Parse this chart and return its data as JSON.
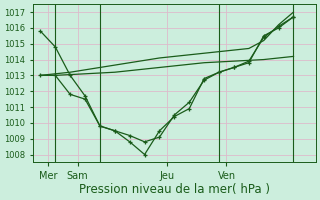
{
  "bg_color": "#cceedd",
  "plot_bg_color": "#cceedd",
  "grid_color": "#ddbbcc",
  "line_color": "#1a5c1a",
  "xlabel": "Pression niveau de la mer( hPa )",
  "xlabel_fontsize": 8.5,
  "ylim": [
    1007.5,
    1017.5
  ],
  "yticks": [
    1008,
    1009,
    1010,
    1011,
    1012,
    1013,
    1014,
    1015,
    1016,
    1017
  ],
  "ytick_fontsize": 6,
  "xtick_labels": [
    "Mer",
    "Sam",
    "Jeu",
    "Ven"
  ],
  "xtick_positions": [
    0.5,
    2.5,
    8.5,
    12.5
  ],
  "vline_positions": [
    1,
    4,
    12,
    17
  ],
  "series": [
    {
      "x": [
        0,
        1,
        2,
        3,
        4,
        5,
        6,
        7,
        8,
        9,
        10,
        11,
        12,
        13,
        14,
        15,
        16,
        17
      ],
      "y": [
        1015.8,
        1014.8,
        1013.0,
        1011.7,
        1009.8,
        1009.5,
        1008.8,
        1008.0,
        1009.5,
        1010.4,
        1010.9,
        1012.8,
        1013.2,
        1013.5,
        1013.8,
        1015.5,
        1016.0,
        1016.7
      ],
      "marker": true
    },
    {
      "x": [
        0,
        1,
        2,
        3,
        4,
        5,
        6,
        7,
        8,
        9,
        10,
        11,
        12,
        13,
        14,
        15,
        16,
        17
      ],
      "y": [
        1013.0,
        1013.0,
        1013.05,
        1013.1,
        1013.15,
        1013.2,
        1013.3,
        1013.4,
        1013.5,
        1013.6,
        1013.7,
        1013.8,
        1013.85,
        1013.9,
        1013.95,
        1014.0,
        1014.1,
        1014.2
      ],
      "marker": false
    },
    {
      "x": [
        0,
        1,
        2,
        3,
        4,
        5,
        6,
        7,
        8,
        9,
        10,
        11,
        12,
        13,
        14,
        15,
        16,
        17
      ],
      "y": [
        1013.0,
        1013.1,
        1013.2,
        1013.35,
        1013.5,
        1013.65,
        1013.8,
        1013.95,
        1014.1,
        1014.2,
        1014.3,
        1014.4,
        1014.5,
        1014.6,
        1014.7,
        1015.2,
        1016.2,
        1017.0
      ],
      "marker": false
    },
    {
      "x": [
        0,
        1,
        2,
        3,
        4,
        5,
        6,
        7,
        8,
        9,
        10,
        11,
        12,
        13,
        14,
        15,
        16,
        17
      ],
      "y": [
        1013.0,
        1013.0,
        1011.8,
        1011.5,
        1009.8,
        1009.5,
        1009.2,
        1008.8,
        1009.1,
        1010.5,
        1011.3,
        1012.7,
        1013.2,
        1013.5,
        1013.9,
        1015.4,
        1016.1,
        1016.7
      ],
      "marker": true
    }
  ],
  "xlim": [
    -0.5,
    18.5
  ]
}
